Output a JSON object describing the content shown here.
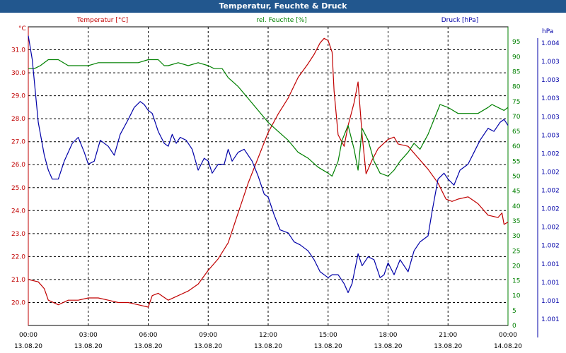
{
  "window": {
    "title": "Temperatur, Feuchte & Druck"
  },
  "colors": {
    "temperature": "#c00000",
    "humidity": "#008000",
    "pressure": "#0000a8",
    "titlebar": "#22578e",
    "grid": "#000000"
  },
  "chart_data": {
    "type": "line",
    "title": "Temperatur, Feuchte & Druck",
    "grid": true,
    "x_ticks": [
      {
        "time": "00:00",
        "date": "13.08.20",
        "h": 0
      },
      {
        "time": "03:00",
        "date": "13.08.20",
        "h": 3
      },
      {
        "time": "06:00",
        "date": "13.08.20",
        "h": 6
      },
      {
        "time": "09:00",
        "date": "13.08.20",
        "h": 9
      },
      {
        "time": "12:00",
        "date": "13.08.20",
        "h": 12
      },
      {
        "time": "15:00",
        "date": "13.08.20",
        "h": 15
      },
      {
        "time": "18:00",
        "date": "13.08.20",
        "h": 18
      },
      {
        "time": "21:00",
        "date": "13.08.20",
        "h": 21
      },
      {
        "time": "00:00",
        "date": "14.08.20",
        "h": 24
      }
    ],
    "x_range_hours": [
      0,
      24
    ],
    "axes": {
      "temperature": {
        "label": "Temperatur [°C]",
        "unit": "°C",
        "range": [
          19.0,
          32.0
        ],
        "ticks": [
          "20.0",
          "21.0",
          "22.0",
          "23.0",
          "24.0",
          "25.0",
          "26.0",
          "27.0",
          "28.0",
          "29.0",
          "30.0",
          "31.0"
        ]
      },
      "humidity": {
        "label": "rel. Feuchte [%]",
        "unit": "%",
        "range": [
          0,
          100
        ],
        "ticks": [
          "0",
          "5",
          "10",
          "15",
          "20",
          "25",
          "30",
          "35",
          "40",
          "45",
          "50",
          "55",
          "60",
          "65",
          "70",
          "75",
          "80",
          "85",
          "90",
          "95"
        ]
      },
      "pressure": {
        "label": "Druck [hPa]",
        "unit": "hPa",
        "ticks": [
          "1.001",
          "1.001",
          "1.001",
          "1.001",
          "1.002",
          "1.002",
          "1.002",
          "1.002",
          "1.002",
          "1.002",
          "1.003",
          "1.003",
          "1.003",
          "1.003",
          "1.003",
          "1.004"
        ]
      }
    },
    "series": [
      {
        "name": "Temperatur [°C]",
        "axis": "temperature",
        "points": [
          [
            0,
            21.0
          ],
          [
            0.5,
            20.9
          ],
          [
            0.8,
            20.6
          ],
          [
            1,
            20.1
          ],
          [
            1.5,
            19.9
          ],
          [
            2,
            20.1
          ],
          [
            2.5,
            20.1
          ],
          [
            3,
            20.2
          ],
          [
            3.5,
            20.2
          ],
          [
            4,
            20.1
          ],
          [
            4.5,
            20.0
          ],
          [
            5,
            20.0
          ],
          [
            5.5,
            19.9
          ],
          [
            6,
            19.8
          ],
          [
            6.2,
            20.3
          ],
          [
            6.5,
            20.4
          ],
          [
            7,
            20.1
          ],
          [
            7.5,
            20.3
          ],
          [
            8,
            20.5
          ],
          [
            8.5,
            20.8
          ],
          [
            9,
            21.4
          ],
          [
            9.5,
            21.9
          ],
          [
            10,
            22.6
          ],
          [
            10.5,
            23.9
          ],
          [
            11,
            25.2
          ],
          [
            11.5,
            26.3
          ],
          [
            12,
            27.4
          ],
          [
            12.5,
            28.2
          ],
          [
            13,
            28.9
          ],
          [
            13.5,
            29.8
          ],
          [
            14,
            30.4
          ],
          [
            14.3,
            30.8
          ],
          [
            14.6,
            31.3
          ],
          [
            14.8,
            31.5
          ],
          [
            15,
            31.4
          ],
          [
            15.2,
            30.9
          ],
          [
            15.3,
            29.2
          ],
          [
            15.5,
            27.3
          ],
          [
            15.8,
            26.8
          ],
          [
            16,
            27.7
          ],
          [
            16.3,
            28.7
          ],
          [
            16.5,
            29.6
          ],
          [
            16.7,
            27.3
          ],
          [
            16.9,
            25.6
          ],
          [
            17.2,
            26.2
          ],
          [
            17.5,
            26.7
          ],
          [
            18,
            27.1
          ],
          [
            18.3,
            27.2
          ],
          [
            18.5,
            26.9
          ],
          [
            19,
            26.8
          ],
          [
            19.5,
            26.3
          ],
          [
            20,
            25.8
          ],
          [
            20.5,
            25.2
          ],
          [
            20.9,
            24.5
          ],
          [
            21.2,
            24.4
          ],
          [
            21.5,
            24.5
          ],
          [
            22,
            24.6
          ],
          [
            22.5,
            24.3
          ],
          [
            23,
            23.8
          ],
          [
            23.5,
            23.7
          ],
          [
            23.7,
            23.9
          ],
          [
            23.8,
            23.4
          ],
          [
            24,
            23.5
          ]
        ]
      },
      {
        "name": "rel. Feuchte [%]",
        "axis": "humidity",
        "points": [
          [
            0,
            86
          ],
          [
            0.3,
            86
          ],
          [
            0.6,
            87
          ],
          [
            1,
            89
          ],
          [
            1.5,
            89
          ],
          [
            2,
            87
          ],
          [
            2.5,
            87
          ],
          [
            3,
            87
          ],
          [
            3.5,
            88
          ],
          [
            4,
            88
          ],
          [
            4.5,
            88
          ],
          [
            5,
            88
          ],
          [
            5.5,
            88
          ],
          [
            6,
            89
          ],
          [
            6.5,
            89
          ],
          [
            6.8,
            87
          ],
          [
            7,
            87
          ],
          [
            7.5,
            88
          ],
          [
            8,
            87
          ],
          [
            8.5,
            88
          ],
          [
            9,
            87
          ],
          [
            9.3,
            86
          ],
          [
            9.7,
            86
          ],
          [
            10,
            83
          ],
          [
            10.5,
            80
          ],
          [
            11,
            76
          ],
          [
            11.5,
            72
          ],
          [
            12,
            68
          ],
          [
            12.5,
            65
          ],
          [
            13,
            62
          ],
          [
            13.5,
            58
          ],
          [
            14,
            56
          ],
          [
            14.5,
            53
          ],
          [
            15,
            51
          ],
          [
            15.2,
            50
          ],
          [
            15.5,
            55
          ],
          [
            15.7,
            62
          ],
          [
            16,
            67
          ],
          [
            16.3,
            59
          ],
          [
            16.5,
            52
          ],
          [
            16.7,
            66
          ],
          [
            17,
            62
          ],
          [
            17.3,
            55
          ],
          [
            17.6,
            51
          ],
          [
            18,
            50
          ],
          [
            18.3,
            52
          ],
          [
            18.6,
            55
          ],
          [
            19,
            58
          ],
          [
            19.3,
            61
          ],
          [
            19.6,
            59
          ],
          [
            20,
            64
          ],
          [
            20.3,
            69
          ],
          [
            20.6,
            74
          ],
          [
            21,
            73
          ],
          [
            21.5,
            71
          ],
          [
            22,
            71
          ],
          [
            22.5,
            71
          ],
          [
            23,
            73
          ],
          [
            23.2,
            74
          ],
          [
            23.5,
            73
          ],
          [
            23.8,
            72
          ],
          [
            24,
            73
          ]
        ]
      },
      {
        "name": "Druck [hPa]",
        "axis": "pressure",
        "unit_note": "plotted on the Druck axis scale, 0-100 of its plotted range",
        "points": [
          [
            0,
            97
          ],
          [
            0.2,
            89
          ],
          [
            0.5,
            68
          ],
          [
            0.8,
            57
          ],
          [
            1,
            52
          ],
          [
            1.2,
            49
          ],
          [
            1.5,
            49
          ],
          [
            1.8,
            55
          ],
          [
            2.2,
            61
          ],
          [
            2.5,
            63
          ],
          [
            2.8,
            58
          ],
          [
            3,
            54
          ],
          [
            3.3,
            55
          ],
          [
            3.6,
            62
          ],
          [
            4,
            60
          ],
          [
            4.3,
            57
          ],
          [
            4.6,
            64
          ],
          [
            5,
            69
          ],
          [
            5.3,
            73
          ],
          [
            5.6,
            75
          ],
          [
            5.8,
            74
          ],
          [
            6,
            72
          ],
          [
            6.2,
            71
          ],
          [
            6.5,
            65
          ],
          [
            6.8,
            61
          ],
          [
            7,
            60
          ],
          [
            7.2,
            64
          ],
          [
            7.4,
            61
          ],
          [
            7.6,
            63
          ],
          [
            7.9,
            62
          ],
          [
            8.2,
            59
          ],
          [
            8.5,
            52
          ],
          [
            8.8,
            56
          ],
          [
            9,
            55
          ],
          [
            9.2,
            51
          ],
          [
            9.5,
            54
          ],
          [
            9.8,
            54
          ],
          [
            10,
            59
          ],
          [
            10.2,
            55
          ],
          [
            10.5,
            58
          ],
          [
            10.8,
            59
          ],
          [
            11.2,
            55
          ],
          [
            11.5,
            50
          ],
          [
            11.8,
            44
          ],
          [
            12,
            43
          ],
          [
            12.3,
            37
          ],
          [
            12.6,
            32
          ],
          [
            13,
            31
          ],
          [
            13.3,
            28
          ],
          [
            13.6,
            27
          ],
          [
            14,
            25
          ],
          [
            14.3,
            22
          ],
          [
            14.6,
            18
          ],
          [
            15,
            16
          ],
          [
            15.2,
            17
          ],
          [
            15.5,
            17
          ],
          [
            15.8,
            14
          ],
          [
            16,
            11
          ],
          [
            16.2,
            14
          ],
          [
            16.5,
            24
          ],
          [
            16.7,
            20
          ],
          [
            17,
            23
          ],
          [
            17.3,
            22
          ],
          [
            17.6,
            16
          ],
          [
            17.8,
            17
          ],
          [
            18,
            21
          ],
          [
            18.3,
            17
          ],
          [
            18.6,
            22
          ],
          [
            19,
            18
          ],
          [
            19.3,
            25
          ],
          [
            19.6,
            28
          ],
          [
            20,
            30
          ],
          [
            20.2,
            38
          ],
          [
            20.5,
            49
          ],
          [
            20.8,
            51
          ],
          [
            21,
            49
          ],
          [
            21.3,
            47
          ],
          [
            21.6,
            52
          ],
          [
            22,
            54
          ],
          [
            22.3,
            58
          ],
          [
            22.6,
            62
          ],
          [
            23,
            66
          ],
          [
            23.3,
            65
          ],
          [
            23.6,
            68
          ],
          [
            23.8,
            69
          ],
          [
            24,
            67
          ]
        ]
      }
    ]
  }
}
